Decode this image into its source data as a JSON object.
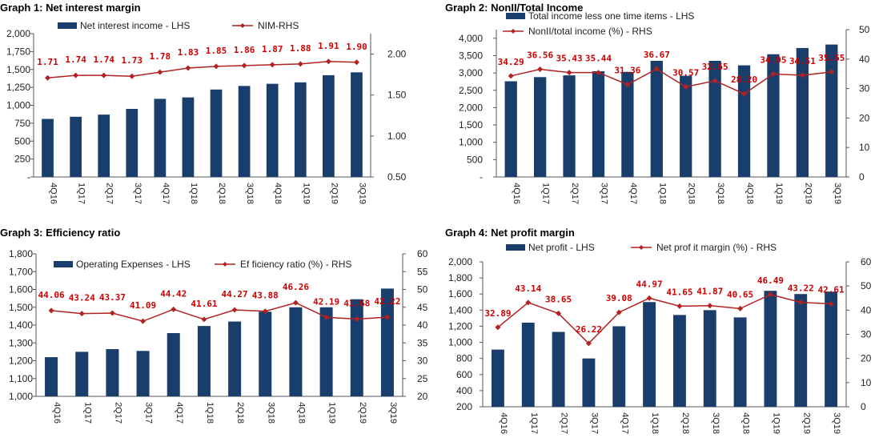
{
  "colors": {
    "bar": "#1a3e6b",
    "line": "#b22222",
    "label": "#cc0000",
    "axis": "#555555"
  },
  "chart_data": [
    {
      "type": "bar",
      "title": "Graph 1: Net interest margin",
      "categories": [
        "4Q16",
        "1Q17",
        "2Q17",
        "3Q17",
        "4Q17",
        "1Q18",
        "2Q18",
        "3Q18",
        "4Q18",
        "1Q19",
        "2Q19",
        "3Q19"
      ],
      "series": [
        {
          "name": "Net interest income - LHS",
          "type": "bar",
          "axis": "left",
          "values": [
            810,
            840,
            870,
            950,
            1090,
            1110,
            1220,
            1270,
            1300,
            1320,
            1420,
            1460
          ]
        },
        {
          "name": "NIM-RHS",
          "type": "line",
          "axis": "right",
          "values": [
            1.71,
            1.74,
            1.74,
            1.73,
            1.78,
            1.83,
            1.85,
            1.86,
            1.87,
            1.88,
            1.91,
            1.9
          ],
          "labels": [
            "1.71",
            "1.74",
            "1.74",
            "1.73",
            "1.78",
            "1.83",
            "1.85",
            "1.86",
            "1.87",
            "1.88",
            "1.91",
            "1.90"
          ]
        }
      ],
      "left_axis": {
        "min": 0,
        "max": 2000,
        "step": 250,
        "ticks": [
          "-",
          "250",
          "500",
          "750",
          "1,000",
          "1,250",
          "1,500",
          "1,750",
          "2,000"
        ]
      },
      "right_axis": {
        "min": 0.5,
        "max": 2.25,
        "step": 0.5,
        "ticks": [
          "0.50",
          "1.00",
          "1.50",
          "2.00"
        ]
      }
    },
    {
      "type": "bar",
      "title": "Graph 2: NonII/Total Income",
      "categories": [
        "4Q16",
        "1Q17",
        "2Q17",
        "3Q17",
        "4Q17",
        "1Q18",
        "2Q18",
        "3Q18",
        "4Q18",
        "1Q19",
        "2Q19",
        "3Q19"
      ],
      "series": [
        {
          "name": "Total income less one time items - LHS",
          "type": "bar",
          "axis": "left",
          "values": [
            2760,
            2880,
            2930,
            3050,
            3030,
            3350,
            2920,
            3350,
            3220,
            3540,
            3720,
            3820
          ]
        },
        {
          "name": "NonII/total income (%) - RHS",
          "type": "line",
          "axis": "right",
          "values": [
            34.29,
            36.56,
            35.43,
            35.44,
            31.36,
            36.67,
            30.57,
            32.65,
            28.2,
            34.95,
            34.51,
            35.65
          ],
          "labels": [
            "34.29",
            "36.56",
            "35.43",
            "35.44",
            "31.36",
            "36.67",
            "30.57",
            "32.65",
            "28.20",
            "34.95",
            "34.51",
            "35.65"
          ]
        }
      ],
      "left_axis": {
        "min": 0,
        "max": 4250,
        "step": 500,
        "ticks": [
          "-",
          "500",
          "1,000",
          "1,500",
          "2,000",
          "2,500",
          "3,000",
          "3,500",
          "4,000"
        ]
      },
      "right_axis": {
        "min": 0,
        "max": 50,
        "step": 10,
        "ticks": [
          "0",
          "10",
          "20",
          "30",
          "40",
          "50"
        ]
      }
    },
    {
      "type": "bar",
      "title": "Graph 3: Efficiency ratio",
      "categories": [
        "4Q16",
        "1Q17",
        "2Q17",
        "3Q17",
        "4Q17",
        "1Q18",
        "2Q18",
        "3Q18",
        "4Q18",
        "1Q19",
        "2Q19",
        "3Q19"
      ],
      "series": [
        {
          "name": "Operating Expenses - LHS",
          "type": "bar",
          "axis": "left",
          "values": [
            1220,
            1250,
            1265,
            1255,
            1355,
            1395,
            1420,
            1475,
            1500,
            1500,
            1545,
            1605
          ]
        },
        {
          "name": "Ef ficiency ratio (%) - RHS",
          "type": "line",
          "axis": "right",
          "values": [
            44.06,
            43.24,
            43.37,
            41.09,
            44.42,
            41.61,
            44.27,
            43.88,
            46.26,
            42.19,
            41.68,
            42.22
          ],
          "labels": [
            "44.06",
            "43.24",
            "43.37",
            "41.09",
            "44.42",
            "41.61",
            "44.27",
            "43.88",
            "46.26",
            "42.19",
            "41.68",
            "42.22"
          ]
        }
      ],
      "left_axis": {
        "min": 1000,
        "max": 1800,
        "step": 100,
        "ticks": [
          "1,000",
          "1,100",
          "1,200",
          "1,300",
          "1,400",
          "1,500",
          "1,600",
          "1,700",
          "1,800"
        ]
      },
      "right_axis": {
        "min": 20,
        "max": 60,
        "step": 5,
        "ticks": [
          "20",
          "25",
          "30",
          "35",
          "40",
          "45",
          "50",
          "55",
          "60"
        ]
      }
    },
    {
      "type": "bar",
      "title": "Graph 4: Net profit margin",
      "categories": [
        "4Q16",
        "1Q17",
        "2Q17",
        "3Q17",
        "4Q17",
        "1Q18",
        "2Q18",
        "3Q18",
        "4Q18",
        "1Q19",
        "2Q19",
        "3Q19"
      ],
      "series": [
        {
          "name": "Net profit - LHS",
          "type": "bar",
          "axis": "left",
          "values": [
            910,
            1245,
            1130,
            800,
            1200,
            1500,
            1340,
            1400,
            1310,
            1640,
            1600,
            1630
          ]
        },
        {
          "name": "Net prof it margin (%) - RHS",
          "type": "line",
          "axis": "right",
          "values": [
            32.89,
            43.14,
            38.65,
            26.22,
            39.08,
            44.97,
            41.65,
            41.87,
            40.65,
            46.49,
            43.22,
            42.61
          ],
          "labels": [
            "32.89",
            "43.14",
            "38.65",
            "26.22",
            "39.08",
            "44.97",
            "41.65",
            "41.87",
            "40.65",
            "46.49",
            "43.22",
            "42.61"
          ]
        }
      ],
      "left_axis": {
        "min": 200,
        "max": 2000,
        "step": 200,
        "ticks": [
          "200",
          "400",
          "600",
          "800",
          "1,000",
          "1,200",
          "1,400",
          "1,600",
          "1,800",
          "2,000"
        ]
      },
      "right_axis": {
        "min": 0,
        "max": 60,
        "step": 10,
        "ticks": [
          "0",
          "10",
          "20",
          "30",
          "40",
          "50",
          "60"
        ]
      }
    }
  ]
}
